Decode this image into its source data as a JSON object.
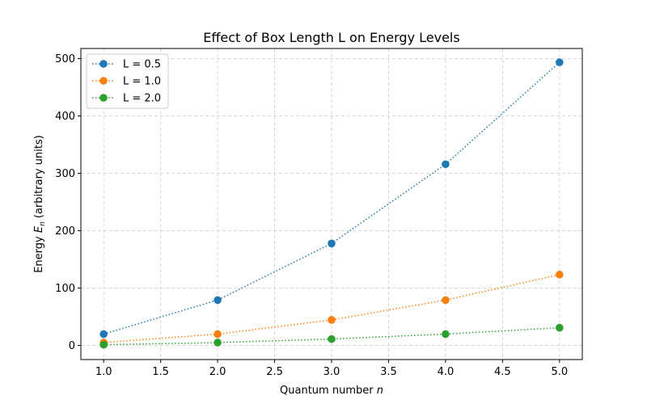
{
  "chart_data": {
    "type": "line",
    "title": "Effect of Box Length L on Energy Levels",
    "xlabel_prefix": "Quantum number ",
    "xlabel_var": "n",
    "ylabel_prefix": "Energy ",
    "ylabel_var": "E",
    "ylabel_sub": "n",
    "ylabel_suffix": " (arbitrary units)",
    "x": [
      1.0,
      2.0,
      3.0,
      4.0,
      5.0
    ],
    "xlim": [
      0.8,
      5.2
    ],
    "ylim": [
      -24.7,
      517.6
    ],
    "xticks": [
      1.0,
      1.5,
      2.0,
      2.5,
      3.0,
      3.5,
      4.0,
      4.5,
      5.0
    ],
    "xtick_labels": [
      "1.0",
      "1.5",
      "2.0",
      "2.5",
      "3.0",
      "3.5",
      "4.0",
      "4.5",
      "5.0"
    ],
    "yticks": [
      0,
      100,
      200,
      300,
      400,
      500
    ],
    "ytick_labels": [
      "0",
      "100",
      "200",
      "300",
      "400",
      "500"
    ],
    "grid": true,
    "legend_position": "top-left",
    "series": [
      {
        "name": "L = 0.5",
        "color": "#1f77b4",
        "values": [
          19.7,
          79.0,
          177.7,
          315.8,
          493.5
        ]
      },
      {
        "name": "L = 1.0",
        "color": "#ff7f0e",
        "values": [
          4.9,
          19.7,
          44.4,
          79.0,
          123.4
        ]
      },
      {
        "name": "L = 2.0",
        "color": "#2ca02c",
        "values": [
          1.2,
          4.9,
          11.1,
          19.7,
          30.8
        ]
      }
    ]
  }
}
